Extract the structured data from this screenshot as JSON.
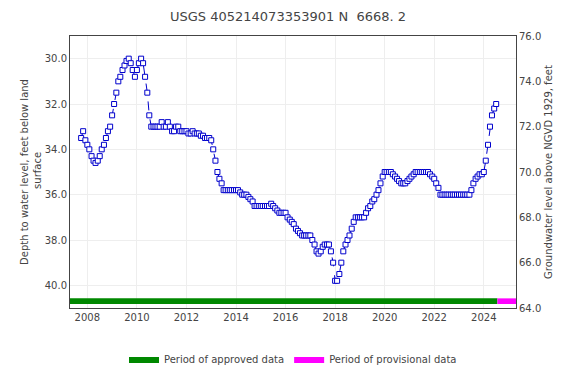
{
  "chart_data": {
    "type": "line",
    "title": "USGS 405214073353901 N  6668. 2",
    "ylabel": "Depth to water level, feet below land\n surface",
    "y2label": "Groundwater level above NGVD 1929, feet",
    "x": [
      2007.75,
      2007.83,
      2007.92,
      2008.0,
      2008.08,
      2008.17,
      2008.25,
      2008.33,
      2008.42,
      2008.5,
      2008.58,
      2008.67,
      2008.75,
      2008.83,
      2008.92,
      2009.0,
      2009.08,
      2009.17,
      2009.25,
      2009.33,
      2009.42,
      2009.5,
      2009.58,
      2009.67,
      2009.75,
      2009.83,
      2009.92,
      2010.0,
      2010.08,
      2010.17,
      2010.25,
      2010.33,
      2010.42,
      2010.5,
      2010.58,
      2010.67,
      2010.75,
      2010.83,
      2010.92,
      2011.0,
      2011.08,
      2011.17,
      2011.25,
      2011.33,
      2011.42,
      2011.5,
      2011.58,
      2011.67,
      2011.75,
      2011.83,
      2011.92,
      2012.0,
      2012.08,
      2012.17,
      2012.25,
      2012.33,
      2012.42,
      2012.5,
      2012.58,
      2012.67,
      2012.75,
      2012.83,
      2012.92,
      2013.0,
      2013.08,
      2013.17,
      2013.25,
      2013.33,
      2013.42,
      2013.5,
      2013.58,
      2013.67,
      2013.75,
      2013.83,
      2013.92,
      2014.0,
      2014.08,
      2014.17,
      2014.25,
      2014.33,
      2014.42,
      2014.5,
      2014.58,
      2014.67,
      2014.75,
      2014.83,
      2014.92,
      2015.0,
      2015.08,
      2015.17,
      2015.25,
      2015.33,
      2015.42,
      2015.5,
      2015.58,
      2015.67,
      2015.75,
      2015.83,
      2015.92,
      2016.0,
      2016.08,
      2016.17,
      2016.25,
      2016.33,
      2016.42,
      2016.5,
      2016.58,
      2016.67,
      2016.75,
      2016.83,
      2016.92,
      2017.0,
      2017.08,
      2017.17,
      2017.25,
      2017.33,
      2017.42,
      2017.5,
      2017.58,
      2017.67,
      2017.75,
      2017.83,
      2017.92,
      2018.0,
      2018.08,
      2018.17,
      2018.25,
      2018.33,
      2018.42,
      2018.5,
      2018.58,
      2018.67,
      2018.75,
      2018.83,
      2018.92,
      2019.0,
      2019.08,
      2019.17,
      2019.25,
      2019.33,
      2019.42,
      2019.5,
      2019.58,
      2019.67,
      2019.75,
      2019.83,
      2019.92,
      2020.0,
      2020.08,
      2020.17,
      2020.25,
      2020.33,
      2020.42,
      2020.5,
      2020.58,
      2020.67,
      2020.75,
      2020.83,
      2020.92,
      2021.0,
      2021.08,
      2021.17,
      2021.25,
      2021.33,
      2021.42,
      2021.5,
      2021.58,
      2021.67,
      2021.75,
      2021.83,
      2021.92,
      2022.0,
      2022.08,
      2022.17,
      2022.25,
      2022.33,
      2022.42,
      2022.5,
      2022.58,
      2022.67,
      2022.75,
      2022.83,
      2022.92,
      2023.0,
      2023.08,
      2023.17,
      2023.25,
      2023.33,
      2023.42,
      2023.5,
      2023.58,
      2023.67,
      2023.75,
      2023.83,
      2023.92,
      2024.0,
      2024.08,
      2024.17,
      2024.25,
      2024.33,
      2024.42,
      2024.5
    ],
    "series": [
      {
        "color": "#0000cc",
        "marker": "square",
        "line_style": "dashed",
        "values": [
          33.5,
          33.2,
          33.6,
          33.8,
          34.0,
          34.3,
          34.5,
          34.6,
          34.5,
          34.3,
          34.0,
          33.8,
          33.5,
          33.2,
          33.0,
          32.5,
          32.0,
          31.5,
          31.0,
          30.8,
          30.5,
          30.3,
          30.1,
          30.0,
          30.2,
          30.5,
          30.8,
          30.5,
          30.2,
          30.0,
          30.2,
          30.8,
          31.5,
          32.5,
          33.0,
          33.0,
          33.0,
          33.0,
          33.0,
          32.8,
          33.0,
          33.0,
          32.8,
          33.0,
          33.2,
          33.2,
          33.0,
          33.0,
          33.2,
          33.2,
          33.2,
          33.2,
          33.3,
          33.3,
          33.2,
          33.3,
          33.3,
          33.3,
          33.4,
          33.4,
          33.5,
          33.5,
          33.5,
          33.6,
          34.0,
          34.5,
          35.0,
          35.3,
          35.5,
          35.8,
          35.8,
          35.8,
          35.8,
          35.8,
          35.8,
          35.8,
          35.8,
          35.9,
          36.0,
          36.0,
          36.0,
          36.1,
          36.2,
          36.3,
          36.5,
          36.5,
          36.5,
          36.5,
          36.5,
          36.5,
          36.5,
          36.5,
          36.4,
          36.5,
          36.6,
          36.7,
          36.8,
          36.8,
          36.8,
          36.8,
          37.0,
          37.1,
          37.2,
          37.3,
          37.5,
          37.6,
          37.7,
          37.8,
          37.8,
          37.8,
          37.8,
          37.8,
          38.0,
          38.2,
          38.5,
          38.6,
          38.5,
          38.3,
          38.2,
          38.2,
          38.2,
          38.5,
          39.0,
          39.8,
          39.8,
          39.5,
          39.0,
          38.5,
          38.2,
          38.0,
          37.8,
          37.5,
          37.2,
          37.0,
          37.0,
          37.0,
          37.0,
          37.0,
          36.8,
          36.6,
          36.5,
          36.3,
          36.2,
          36.0,
          35.8,
          35.5,
          35.2,
          35.0,
          35.0,
          35.0,
          35.0,
          35.1,
          35.2,
          35.3,
          35.4,
          35.5,
          35.5,
          35.5,
          35.4,
          35.3,
          35.2,
          35.1,
          35.0,
          35.0,
          35.0,
          35.0,
          35.0,
          35.0,
          35.0,
          35.1,
          35.2,
          35.3,
          35.5,
          35.7,
          36.0,
          36.0,
          36.0,
          36.0,
          36.0,
          36.0,
          36.0,
          36.0,
          36.0,
          36.0,
          36.0,
          36.0,
          36.0,
          36.0,
          36.0,
          35.8,
          35.5,
          35.3,
          35.2,
          35.1,
          35.1,
          35.0,
          34.5,
          33.8,
          33.0,
          32.5,
          32.2,
          32.0
        ]
      }
    ],
    "bands": [
      {
        "name": "Period of approved data",
        "color": "#008800",
        "xstart": 2007.3,
        "xend": 2024.55
      },
      {
        "name": "Period of provisional data",
        "color": "#ff00ff",
        "xstart": 2024.55,
        "xend": 2025.3
      }
    ],
    "band_y": 40.7,
    "band_height": 0.25,
    "xlim": [
      2007.3,
      2025.3
    ],
    "xticks": [
      2008,
      2010,
      2012,
      2014,
      2016,
      2018,
      2020,
      2022,
      2024
    ],
    "ylim": [
      41.0,
      29.0
    ],
    "yticks": [
      {
        "value": 30.0,
        "label": "30.0"
      },
      {
        "value": 32.0,
        "label": "32.0"
      },
      {
        "value": 34.0,
        "label": "34.0"
      },
      {
        "value": 36.0,
        "label": "36.0"
      },
      {
        "value": 38.0,
        "label": "38.0"
      },
      {
        "value": 40.0,
        "label": "40.0"
      }
    ],
    "y2lim": [
      64.0,
      76.0
    ],
    "y2ticks": [
      {
        "value": 64.0,
        "label": "64.0"
      },
      {
        "value": 66.0,
        "label": "66.0"
      },
      {
        "value": 68.0,
        "label": "68.0"
      },
      {
        "value": 70.0,
        "label": "70.0"
      },
      {
        "value": 72.0,
        "label": "72.0"
      },
      {
        "value": 74.0,
        "label": "74.0"
      },
      {
        "value": 76.0,
        "label": "76.0"
      }
    ],
    "grid": true,
    "legend": "bottom"
  }
}
